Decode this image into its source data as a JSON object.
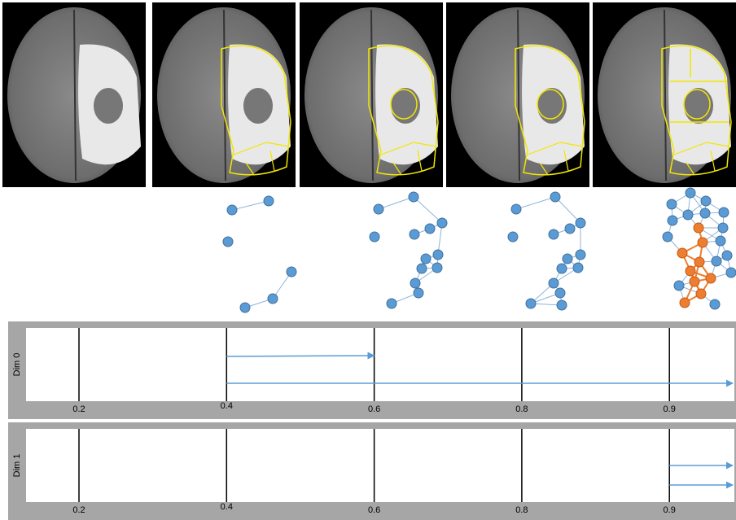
{
  "figure": {
    "barcodes": [
      {
        "label": "Dim 0",
        "ticks": [
          0.2,
          0.4,
          0.6,
          0.8,
          0.9
        ],
        "bars": [
          {
            "birth": 0.4,
            "death": 0.6
          },
          {
            "birth": 0.4,
            "death": null
          }
        ]
      },
      {
        "label": "Dim 1",
        "ticks": [
          0.2,
          0.4,
          0.6,
          0.8,
          0.9
        ],
        "bars": [
          {
            "birth": 0.9,
            "death": null
          },
          {
            "birth": 0.9,
            "death": null
          }
        ]
      }
    ]
  }
}
